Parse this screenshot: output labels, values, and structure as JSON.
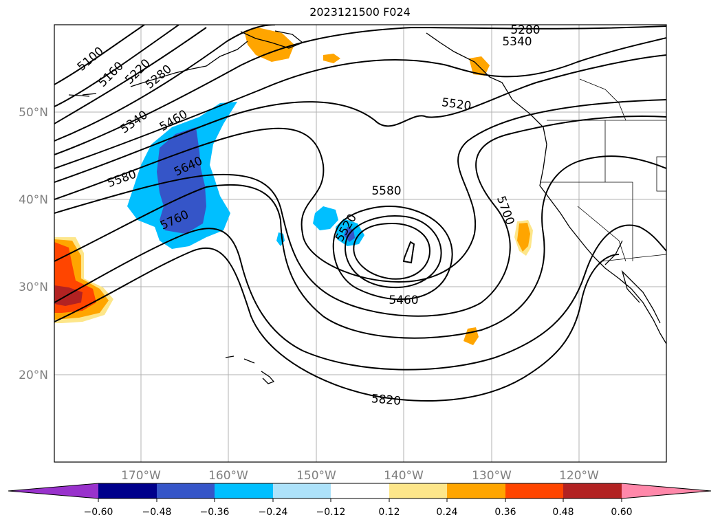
{
  "figure": {
    "title": "2023121500 F024"
  },
  "map": {
    "lat_labels": [
      "50°N",
      "40°N",
      "30°N",
      "20°N"
    ],
    "lon_labels": [
      "170°W",
      "160°W",
      "150°W",
      "140°W",
      "130°W",
      "120°W"
    ],
    "contour_labels": [
      "5100",
      "5160",
      "5220",
      "5280",
      "5340",
      "5460",
      "5580",
      "5640",
      "5760",
      "5280",
      "5340",
      "5520",
      "5580",
      "5520",
      "5700",
      "5460",
      "5820"
    ]
  },
  "colorbar": {
    "ticks": [
      "−0.60",
      "−0.48",
      "−0.36",
      "−0.24",
      "−0.12",
      "0.12",
      "0.24",
      "0.36",
      "0.48",
      "0.60"
    ],
    "colors": [
      "#9932cc",
      "#00008b",
      "#3555c8",
      "#00bfff",
      "#ade2fa",
      "#ffffff",
      "#fde68a",
      "#ffa500",
      "#ff4500",
      "#b22222",
      "#ff88aa"
    ]
  }
}
